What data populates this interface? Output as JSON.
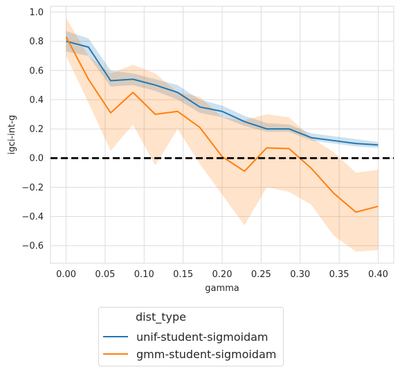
{
  "chart_data": {
    "type": "line",
    "title": "",
    "xlabel": "gamma",
    "ylabel": "igci-int-g",
    "xlim": [
      -0.02,
      0.42
    ],
    "ylim": [
      -0.72,
      1.04
    ],
    "xticks": [
      0.0,
      0.05,
      0.1,
      0.15,
      0.2,
      0.25,
      0.3,
      0.35,
      0.4
    ],
    "xtick_labels": [
      "0.00",
      "0.05",
      "0.10",
      "0.15",
      "0.20",
      "0.25",
      "0.30",
      "0.35",
      "0.40"
    ],
    "yticks": [
      -0.6,
      -0.4,
      -0.2,
      0.0,
      0.2,
      0.4,
      0.6,
      0.8,
      1.0
    ],
    "ytick_labels": [
      "−0.6",
      "−0.4",
      "−0.2",
      "0.0",
      "0.2",
      "0.4",
      "0.6",
      "0.8",
      "1.0"
    ],
    "grid": true,
    "reference_line": {
      "y": 0.0,
      "style": "dashed",
      "color": "#000000"
    },
    "legend": {
      "title": "dist_type",
      "placement": "below"
    },
    "x": [
      0.0,
      0.0286,
      0.0571,
      0.0857,
      0.1143,
      0.1429,
      0.1714,
      0.2,
      0.2286,
      0.2571,
      0.2857,
      0.3143,
      0.3429,
      0.3714,
      0.4
    ],
    "series": [
      {
        "name": "unif-student-sigmoidam",
        "color": "#1f77b4",
        "values": [
          0.8,
          0.76,
          0.53,
          0.54,
          0.5,
          0.45,
          0.35,
          0.32,
          0.25,
          0.2,
          0.2,
          0.14,
          0.12,
          0.1,
          0.09
        ],
        "lower": [
          0.73,
          0.7,
          0.49,
          0.5,
          0.46,
          0.4,
          0.31,
          0.28,
          0.22,
          0.18,
          0.18,
          0.12,
          0.1,
          0.08,
          0.07
        ],
        "upper": [
          0.87,
          0.82,
          0.6,
          0.58,
          0.54,
          0.5,
          0.4,
          0.36,
          0.29,
          0.24,
          0.23,
          0.17,
          0.15,
          0.13,
          0.11
        ]
      },
      {
        "name": "gmm-student-sigmoidam",
        "color": "#ff7f0e",
        "values": [
          0.83,
          0.54,
          0.31,
          0.45,
          0.3,
          0.32,
          0.21,
          0.01,
          -0.09,
          0.07,
          0.065,
          -0.07,
          -0.24,
          -0.37,
          -0.33
        ],
        "lower": [
          0.7,
          0.38,
          0.05,
          0.23,
          -0.05,
          0.2,
          -0.04,
          -0.25,
          -0.46,
          -0.2,
          -0.23,
          -0.32,
          -0.53,
          -0.64,
          -0.63
        ],
        "upper": [
          0.96,
          0.7,
          0.58,
          0.64,
          0.58,
          0.45,
          0.42,
          0.28,
          0.26,
          0.3,
          0.28,
          0.14,
          0.04,
          -0.1,
          -0.08
        ]
      }
    ]
  }
}
